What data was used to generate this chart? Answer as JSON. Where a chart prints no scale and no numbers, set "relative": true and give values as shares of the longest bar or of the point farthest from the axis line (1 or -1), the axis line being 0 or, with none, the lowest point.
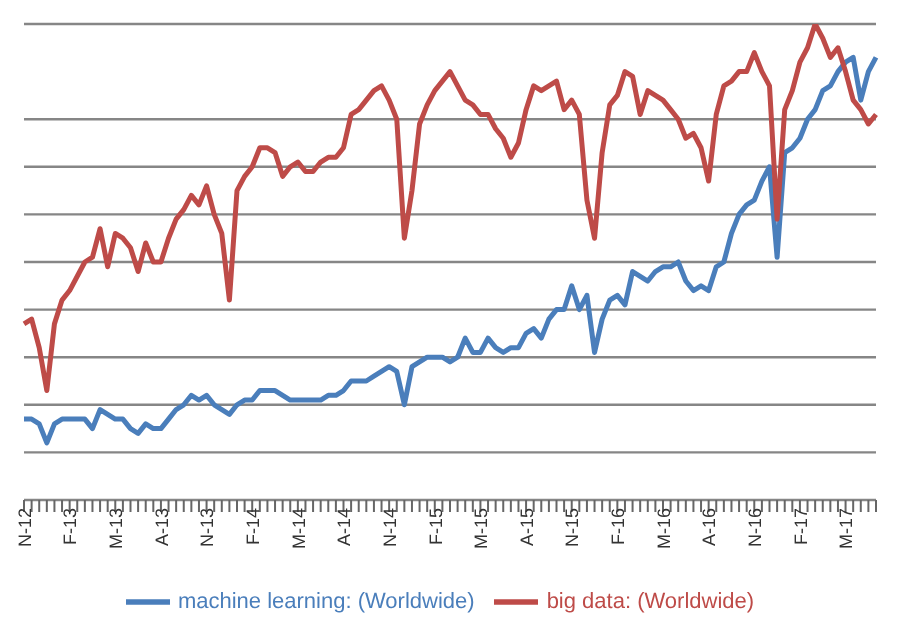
{
  "chart_data": {
    "type": "line",
    "relative": true,
    "grid": "y",
    "legend": "bottom",
    "marker": "none",
    "line_style": "solid",
    "categories": [
      "N-12",
      null,
      null,
      null,
      null,
      null,
      "F-13",
      null,
      null,
      null,
      null,
      null,
      "M-13",
      null,
      null,
      null,
      null,
      null,
      "A-13",
      null,
      null,
      null,
      null,
      null,
      "N-13",
      null,
      null,
      null,
      null,
      null,
      "F-14",
      null,
      null,
      null,
      null,
      null,
      "M-14",
      null,
      null,
      null,
      null,
      null,
      "A-14",
      null,
      null,
      null,
      null,
      null,
      "N-14",
      null,
      null,
      null,
      null,
      null,
      "F-15",
      null,
      null,
      null,
      null,
      null,
      "M-15",
      null,
      null,
      null,
      null,
      null,
      "A-15",
      null,
      null,
      null,
      null,
      null,
      "N-15",
      null,
      null,
      null,
      null,
      null,
      "F-16",
      null,
      null,
      null,
      null,
      null,
      "M-16",
      null,
      null,
      null,
      null,
      null,
      "A-16",
      null,
      null,
      null,
      null,
      null,
      "N-16",
      null,
      null,
      null,
      null,
      null,
      "F-17",
      null,
      null,
      null,
      null,
      null,
      "M-17",
      null,
      null,
      null,
      null
    ],
    "series": [
      {
        "name": "machine learning: (Worldwide)",
        "color": "#4a7ebb",
        "values": [
          0.17,
          0.17,
          0.16,
          0.12,
          0.16,
          0.17,
          0.17,
          0.17,
          0.17,
          0.15,
          0.19,
          0.18,
          0.17,
          0.17,
          0.15,
          0.14,
          0.16,
          0.15,
          0.15,
          0.17,
          0.19,
          0.2,
          0.22,
          0.21,
          0.22,
          0.2,
          0.19,
          0.18,
          0.2,
          0.21,
          0.21,
          0.23,
          0.23,
          0.23,
          0.22,
          0.21,
          0.21,
          0.21,
          0.21,
          0.21,
          0.22,
          0.22,
          0.23,
          0.25,
          0.25,
          0.25,
          0.26,
          0.27,
          0.28,
          0.27,
          0.2,
          0.28,
          0.29,
          0.3,
          0.3,
          0.3,
          0.29,
          0.3,
          0.34,
          0.31,
          0.31,
          0.34,
          0.32,
          0.31,
          0.32,
          0.32,
          0.35,
          0.36,
          0.34,
          0.38,
          0.4,
          0.4,
          0.45,
          0.4,
          0.43,
          0.31,
          0.38,
          0.42,
          0.43,
          0.41,
          0.48,
          0.47,
          0.46,
          0.48,
          0.49,
          0.49,
          0.5,
          0.46,
          0.44,
          0.45,
          0.44,
          0.49,
          0.5,
          0.56,
          0.6,
          0.62,
          0.63,
          0.67,
          0.7,
          0.51,
          0.73,
          0.74,
          0.76,
          0.8,
          0.82,
          0.86,
          0.87,
          0.9,
          0.92,
          0.93,
          0.84,
          0.9,
          0.93
        ]
      },
      {
        "name": "big data: (Worldwide)",
        "color": "#be4b48",
        "values": [
          0.37,
          0.38,
          0.32,
          0.23,
          0.37,
          0.42,
          0.44,
          0.47,
          0.5,
          0.51,
          0.57,
          0.49,
          0.56,
          0.55,
          0.53,
          0.48,
          0.54,
          0.5,
          0.5,
          0.55,
          0.59,
          0.61,
          0.64,
          0.62,
          0.66,
          0.6,
          0.56,
          0.42,
          0.65,
          0.68,
          0.7,
          0.74,
          0.74,
          0.73,
          0.68,
          0.7,
          0.71,
          0.69,
          0.69,
          0.71,
          0.72,
          0.72,
          0.74,
          0.81,
          0.82,
          0.84,
          0.86,
          0.87,
          0.84,
          0.8,
          0.55,
          0.65,
          0.79,
          0.83,
          0.86,
          0.88,
          0.9,
          0.87,
          0.84,
          0.83,
          0.81,
          0.81,
          0.78,
          0.76,
          0.72,
          0.75,
          0.82,
          0.87,
          0.86,
          0.87,
          0.88,
          0.82,
          0.84,
          0.81,
          0.63,
          0.55,
          0.73,
          0.83,
          0.85,
          0.9,
          0.89,
          0.81,
          0.86,
          0.85,
          0.84,
          0.82,
          0.8,
          0.76,
          0.77,
          0.74,
          0.67,
          0.81,
          0.87,
          0.88,
          0.9,
          0.9,
          0.94,
          0.9,
          0.87,
          0.59,
          0.82,
          0.86,
          0.92,
          0.95,
          1.0,
          0.97,
          0.93,
          0.95,
          0.9,
          0.84,
          0.82,
          0.79,
          0.81
        ]
      }
    ]
  }
}
